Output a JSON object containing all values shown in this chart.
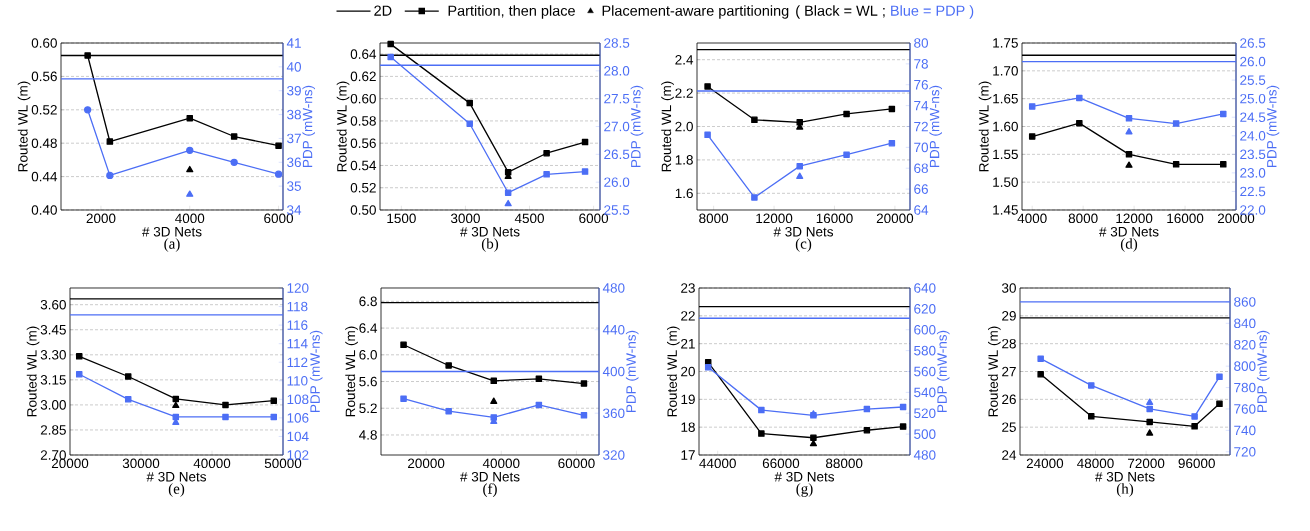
{
  "chart_data": [
    {
      "type": "line",
      "title": "(a)",
      "xlabel": "# 3D Nets",
      "ylabel": "Routed WL (m)",
      "y2label": "PDP (mW-ns)",
      "legend": "top",
      "grid": "y",
      "annotations": [
        "( Black = WL ;",
        "Blue = PDP )"
      ],
      "xlim": [
        1100,
        6100
      ],
      "xticks": [
        2000,
        4000,
        6000
      ],
      "ylim": [
        0.4,
        0.6
      ],
      "yticks": [
        {
          "value": 0.4,
          "label": "0.40"
        },
        {
          "value": 0.44,
          "label": "0.44"
        },
        {
          "value": 0.48,
          "label": "0.48"
        },
        {
          "value": 0.52,
          "label": "0.52"
        },
        {
          "value": 0.56,
          "label": "0.56"
        },
        {
          "value": 0.6,
          "label": "0.60"
        }
      ],
      "y2lim": [
        34,
        41
      ],
      "y2ticks": [
        34,
        35,
        36,
        37,
        38,
        39,
        40,
        41
      ],
      "ref_lines": [
        {
          "axis": "y",
          "value": 0.585,
          "label": "2D",
          "color": "#000000"
        },
        {
          "axis": "y2",
          "value": 39.5,
          "color": "#4c6ef5"
        }
      ],
      "series": [
        {
          "name": "Partition, then place",
          "color": "#000000",
          "marker": "square",
          "x": [
            1700,
            2200,
            4000,
            5000,
            6000
          ],
          "values": [
            0.585,
            0.482,
            0.51,
            0.488,
            0.477
          ]
        },
        {
          "color": "#4c6ef5",
          "marker": "circle",
          "axis": "y2",
          "x": [
            1700,
            2200,
            4000,
            5000,
            6000
          ],
          "values": [
            38.2,
            35.45,
            36.5,
            36.0,
            35.5
          ]
        },
        {
          "type": "scatter",
          "name": "Placement-aware partitioning",
          "color": "#000000",
          "marker": "triangle",
          "x": [
            4000
          ],
          "values": [
            0.448
          ]
        },
        {
          "type": "scatter",
          "color": "#4c6ef5",
          "marker": "triangle",
          "axis": "y2",
          "x": [
            4000
          ],
          "values": [
            34.65
          ]
        }
      ]
    },
    {
      "type": "line",
      "title": "(b)",
      "xlabel": "# 3D Nets",
      "ylabel": "Routed WL (m)",
      "y2label": "PDP (mW-ns)",
      "grid": "y",
      "xlim": [
        1000,
        6150
      ],
      "xticks": [
        1500,
        3000,
        4500,
        6000
      ],
      "ylim": [
        0.5,
        0.65
      ],
      "yticks": [
        {
          "value": 0.5,
          "label": "0.50"
        },
        {
          "value": 0.52,
          "label": "0.52"
        },
        {
          "value": 0.54,
          "label": "0.54"
        },
        {
          "value": 0.56,
          "label": "0.56"
        },
        {
          "value": 0.58,
          "label": "0.58"
        },
        {
          "value": 0.6,
          "label": "0.60"
        },
        {
          "value": 0.62,
          "label": "0.62"
        },
        {
          "value": 0.64,
          "label": "0.64"
        }
      ],
      "y2lim": [
        25.5,
        28.5
      ],
      "y2ticks": [
        25.5,
        {
          "value": 26,
          "label": "26.0"
        },
        26.5,
        {
          "value": 27,
          "label": "27.0"
        },
        27.5,
        {
          "value": 28,
          "label": "28.0"
        },
        28.5
      ],
      "ref_lines": [
        {
          "axis": "y",
          "value": 0.639,
          "color": "#000000"
        },
        {
          "axis": "y2",
          "value": 28.1,
          "color": "#4c6ef5"
        }
      ],
      "series": [
        {
          "color": "#000000",
          "marker": "square",
          "x": [
            1250,
            3100,
            4000,
            4900,
            5800
          ],
          "values": [
            0.649,
            0.596,
            0.534,
            0.551,
            0.561
          ]
        },
        {
          "color": "#4c6ef5",
          "marker": "square",
          "axis": "y2",
          "x": [
            1250,
            3100,
            4000,
            4900,
            5800
          ],
          "values": [
            28.25,
            27.05,
            25.81,
            26.14,
            26.19
          ]
        },
        {
          "type": "scatter",
          "color": "#000000",
          "marker": "triangle",
          "x": [
            4000
          ],
          "values": [
            0.53
          ]
        },
        {
          "type": "scatter",
          "color": "#4c6ef5",
          "marker": "triangle",
          "axis": "y2",
          "x": [
            4000
          ],
          "values": [
            25.61
          ]
        }
      ]
    },
    {
      "type": "line",
      "title": "(c)",
      "xlabel": "# 3D Nets",
      "ylabel": "Routed WL (m)",
      "y2label": "PDP (mW-ns)",
      "grid": "y",
      "xlim": [
        6900,
        21000
      ],
      "xticks": [
        8000,
        12000,
        16000,
        20000
      ],
      "ylim": [
        1.5,
        2.5
      ],
      "yticks": [
        1.6,
        1.8,
        {
          "value": 2.0,
          "label": "2.0"
        },
        2.2,
        2.4
      ],
      "y2lim": [
        64,
        80
      ],
      "y2ticks": [
        64,
        66,
        68,
        70,
        72,
        74,
        76,
        78,
        80
      ],
      "ref_lines": [
        {
          "axis": "y",
          "value": 2.46,
          "color": "#000000"
        },
        {
          "axis": "y2",
          "value": 75.4,
          "color": "#4c6ef5"
        }
      ],
      "series": [
        {
          "color": "#000000",
          "marker": "square",
          "x": [
            7600,
            10700,
            13700,
            16800,
            19800
          ],
          "values": [
            2.24,
            2.04,
            2.025,
            2.075,
            2.105
          ]
        },
        {
          "color": "#4c6ef5",
          "marker": "square",
          "axis": "y2",
          "x": [
            7600,
            10700,
            13700,
            16800,
            19800
          ],
          "values": [
            71.2,
            65.2,
            68.2,
            69.3,
            70.4
          ]
        },
        {
          "type": "scatter",
          "color": "#000000",
          "marker": "triangle",
          "x": [
            13700
          ],
          "values": [
            1.995
          ]
        },
        {
          "type": "scatter",
          "color": "#4c6ef5",
          "marker": "triangle",
          "axis": "y2",
          "x": [
            13700
          ],
          "values": [
            67.2
          ]
        }
      ]
    },
    {
      "type": "line",
      "title": "(d)",
      "xlabel": "# 3D Nets",
      "ylabel": "Routed WL (m)",
      "y2label": "PDP (mW-ns)",
      "grid": "y",
      "xlim": [
        3200,
        20000
      ],
      "xticks": [
        4000,
        8000,
        12000,
        16000,
        20000
      ],
      "ylim": [
        1.45,
        1.75
      ],
      "yticks": [
        1.45,
        {
          "value": 1.5,
          "label": "1.50"
        },
        1.55,
        {
          "value": 1.6,
          "label": "1.60"
        },
        1.65,
        {
          "value": 1.7,
          "label": "1.70"
        },
        1.75
      ],
      "y2lim": [
        22,
        26.5
      ],
      "y2ticks": [
        {
          "value": 22,
          "label": "22.0"
        },
        22.5,
        {
          "value": 23,
          "label": "23.0"
        },
        23.5,
        {
          "value": 24,
          "label": "24.0"
        },
        24.5,
        {
          "value": 25,
          "label": "25.0"
        },
        25.5,
        {
          "value": 26,
          "label": "26.0"
        },
        26.5
      ],
      "ref_lines": [
        {
          "axis": "y",
          "value": 1.728,
          "color": "#000000"
        },
        {
          "axis": "y2",
          "value": 26.0,
          "color": "#4c6ef5"
        }
      ],
      "series": [
        {
          "color": "#000000",
          "marker": "square",
          "x": [
            4000,
            7700,
            11600,
            15300,
            19000
          ],
          "values": [
            1.582,
            1.606,
            1.55,
            1.532,
            1.532
          ]
        },
        {
          "color": "#4c6ef5",
          "marker": "square",
          "axis": "y2",
          "x": [
            4000,
            7700,
            11600,
            15300,
            19000
          ],
          "values": [
            24.79,
            25.02,
            24.47,
            24.33,
            24.59
          ]
        },
        {
          "type": "scatter",
          "color": "#000000",
          "marker": "triangle",
          "x": [
            11600
          ],
          "values": [
            1.53
          ]
        },
        {
          "type": "scatter",
          "color": "#4c6ef5",
          "marker": "triangle",
          "axis": "y2",
          "x": [
            11600
          ],
          "values": [
            24.1
          ]
        }
      ]
    },
    {
      "type": "line",
      "title": "(e)",
      "xlabel": "# 3D Nets",
      "ylabel": "Routed WL (m)",
      "y2label": "PDP (mW-ns)",
      "grid": "y",
      "xlim": [
        20000,
        50000
      ],
      "xticks": [
        20000,
        30000,
        40000,
        50000
      ],
      "ylim": [
        2.7,
        3.7
      ],
      "yticks": [
        {
          "value": 2.7,
          "label": "2.70"
        },
        2.85,
        {
          "value": 3.0,
          "label": "3.00"
        },
        3.15,
        {
          "value": 3.3,
          "label": "3.30"
        },
        3.45,
        {
          "value": 3.6,
          "label": "3.60"
        }
      ],
      "y2lim": [
        102,
        120
      ],
      "y2ticks": [
        102,
        104,
        106,
        108,
        110,
        112,
        114,
        116,
        118,
        120
      ],
      "ref_lines": [
        {
          "axis": "y",
          "value": 3.635,
          "color": "#000000"
        },
        {
          "axis": "y2",
          "value": 117.1,
          "color": "#4c6ef5"
        }
      ],
      "series": [
        {
          "color": "#000000",
          "marker": "square",
          "x": [
            21300,
            28200,
            34900,
            41900,
            48700
          ],
          "values": [
            3.291,
            3.17,
            3.036,
            3.0,
            3.025
          ]
        },
        {
          "color": "#4c6ef5",
          "marker": "square",
          "axis": "y2",
          "x": [
            21300,
            28200,
            34900,
            41900,
            48700
          ],
          "values": [
            110.7,
            108.0,
            106.1,
            106.1,
            106.1
          ]
        },
        {
          "type": "scatter",
          "color": "#000000",
          "marker": "triangle",
          "x": [
            34900
          ],
          "values": [
            2.995
          ]
        },
        {
          "type": "scatter",
          "color": "#4c6ef5",
          "marker": "triangle",
          "axis": "y2",
          "x": [
            34900
          ],
          "values": [
            105.5
          ]
        }
      ]
    },
    {
      "type": "line",
      "title": "(f)",
      "xlabel": "# 3D Nets",
      "ylabel": "Routed WL (m)",
      "y2label": "PDP (mW-ns)",
      "grid": "y",
      "xlim": [
        8000,
        66000
      ],
      "xticks": [
        20000,
        40000,
        60000
      ],
      "ylim": [
        4.5,
        7.0
      ],
      "yticks": [
        4.8,
        5.2,
        5.6,
        {
          "value": 6.0,
          "label": "6.0"
        },
        6.4,
        6.8
      ],
      "y2lim": [
        320,
        480
      ],
      "y2ticks": [
        320,
        360,
        400,
        440,
        480
      ],
      "ref_lines": [
        {
          "axis": "y",
          "value": 6.78,
          "color": "#000000"
        },
        {
          "axis": "y2",
          "value": 400,
          "color": "#4c6ef5"
        }
      ],
      "series": [
        {
          "color": "#000000",
          "marker": "square",
          "x": [
            14000,
            26000,
            38000,
            50000,
            62000
          ],
          "values": [
            6.15,
            5.84,
            5.61,
            5.64,
            5.57
          ]
        },
        {
          "color": "#4c6ef5",
          "marker": "square",
          "axis": "y2",
          "x": [
            14000,
            26000,
            38000,
            50000,
            62000
          ],
          "values": [
            374,
            362,
            356,
            368,
            358
          ]
        },
        {
          "type": "scatter",
          "color": "#000000",
          "marker": "triangle",
          "x": [
            38000
          ],
          "values": [
            5.3
          ]
        },
        {
          "type": "scatter",
          "color": "#4c6ef5",
          "marker": "triangle",
          "axis": "y2",
          "x": [
            38000
          ],
          "values": [
            352
          ]
        }
      ]
    },
    {
      "type": "line",
      "title": "(g)",
      "xlabel": "# 3D Nets",
      "ylabel": "Routed WL (m)",
      "y2label": "PDP (mW-ns)",
      "grid": "y",
      "xlim": [
        37500,
        110900
      ],
      "xticks": [
        44000,
        66000,
        88000
      ],
      "ylim": [
        17,
        23
      ],
      "yticks": [
        17,
        18,
        19,
        20,
        21,
        22,
        23
      ],
      "y2lim": [
        480,
        640
      ],
      "y2ticks": [
        480,
        500,
        520,
        540,
        560,
        580,
        600,
        620,
        640
      ],
      "ref_lines": [
        {
          "axis": "y",
          "value": 22.33,
          "color": "#000000"
        },
        {
          "axis": "y2",
          "value": 611,
          "color": "#4c6ef5"
        }
      ],
      "series": [
        {
          "color": "#000000",
          "marker": "square",
          "x": [
            40700,
            59200,
            77300,
            95900,
            108500
          ],
          "values": [
            20.33,
            17.77,
            17.62,
            17.89,
            18.02
          ]
        },
        {
          "color": "#4c6ef5",
          "marker": "square",
          "axis": "y2",
          "x": [
            40700,
            59200,
            77300,
            95900,
            108500
          ],
          "values": [
            564,
            523,
            518,
            524,
            526
          ]
        },
        {
          "type": "scatter",
          "color": "#000000",
          "marker": "triangle",
          "x": [
            77300
          ],
          "values": [
            17.4
          ]
        },
        {
          "type": "scatter",
          "color": "#4c6ef5",
          "marker": "triangle",
          "axis": "y2",
          "x": [
            77300
          ],
          "values": [
            519
          ]
        }
      ]
    },
    {
      "type": "line",
      "title": "(h)",
      "xlabel": "# 3D Nets",
      "ylabel": "Routed WL (m)",
      "y2label": "PDP (mW-ns)",
      "grid": "y",
      "xlim": [
        12200,
        111800
      ],
      "xticks": [
        24000,
        48000,
        72000,
        96000
      ],
      "ylim": [
        24,
        30
      ],
      "yticks": [
        24,
        25,
        26,
        27,
        28,
        29,
        30
      ],
      "y2lim": [
        717,
        873
      ],
      "y2ticks": [
        720,
        740,
        760,
        780,
        800,
        820,
        840,
        860
      ],
      "ref_lines": [
        {
          "axis": "y",
          "value": 28.93,
          "color": "#000000"
        },
        {
          "axis": "y2",
          "value": 860,
          "color": "#4c6ef5"
        }
      ],
      "series": [
        {
          "color": "#000000",
          "marker": "square",
          "x": [
            22000,
            46000,
            73700,
            95000,
            106800
          ],
          "values": [
            26.9,
            25.39,
            25.19,
            25.03,
            25.84
          ]
        },
        {
          "color": "#4c6ef5",
          "marker": "square",
          "axis": "y2",
          "x": [
            22000,
            46000,
            73700,
            95000,
            106800
          ],
          "values": [
            807,
            782,
            760,
            753,
            790
          ]
        },
        {
          "type": "scatter",
          "color": "#000000",
          "marker": "triangle",
          "x": [
            73700
          ],
          "values": [
            24.78
          ]
        },
        {
          "type": "scatter",
          "color": "#4c6ef5",
          "marker": "triangle",
          "axis": "y2",
          "x": [
            73700
          ],
          "values": [
            766
          ]
        }
      ]
    }
  ]
}
